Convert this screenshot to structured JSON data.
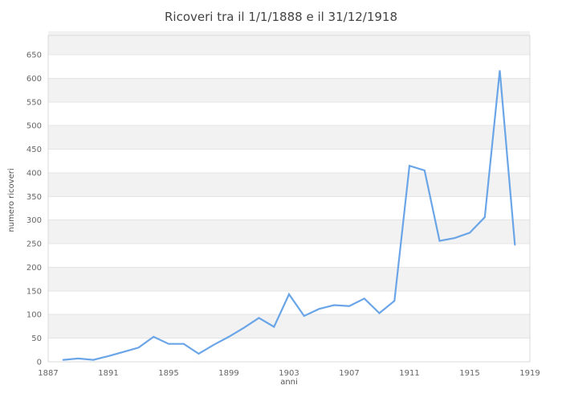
{
  "chart_data": {
    "type": "line",
    "title": "Ricoveri tra il 1/1/1888 e il 31/12/1918",
    "xlabel": "anni",
    "ylabel": "numero ricoveri",
    "x": [
      1888,
      1889,
      1890,
      1891,
      1892,
      1893,
      1894,
      1895,
      1896,
      1897,
      1898,
      1899,
      1900,
      1901,
      1902,
      1903,
      1904,
      1905,
      1906,
      1907,
      1908,
      1909,
      1910,
      1911,
      1912,
      1913,
      1914,
      1915,
      1916,
      1917,
      1918
    ],
    "series": [
      {
        "name": "numero ricoveri",
        "values": [
          4,
          7,
          4,
          12,
          21,
          30,
          53,
          38,
          38,
          17,
          36,
          53,
          72,
          93,
          74,
          143,
          97,
          112,
          120,
          118,
          134,
          103,
          129,
          415,
          405,
          256,
          262,
          273,
          306,
          617,
          248
        ]
      }
    ],
    "xlim": [
      1887,
      1919
    ],
    "ylim": [
      0,
      691
    ],
    "x_ticks": [
      1887,
      1891,
      1895,
      1899,
      1903,
      1907,
      1911,
      1915,
      1919
    ],
    "y_ticks": [
      0,
      50,
      100,
      150,
      200,
      250,
      300,
      350,
      400,
      450,
      500,
      550,
      600,
      650
    ],
    "grid": "horizontal-only",
    "legend": "none",
    "markers": "none",
    "band_pattern": "alternating gray bands between 50-unit gridlines (50-100, 150-200, 250-300, 350-400, 450-500, 550-600)",
    "colors": {
      "line": "#6aa5e8",
      "band": "#f2f2f2",
      "gridline": "#e4e4e4",
      "plot_border": "#d9d9d9",
      "title_text": "#444444",
      "tick_text": "#666666",
      "axis_title_text": "#555555",
      "background": "#ffffff"
    }
  }
}
